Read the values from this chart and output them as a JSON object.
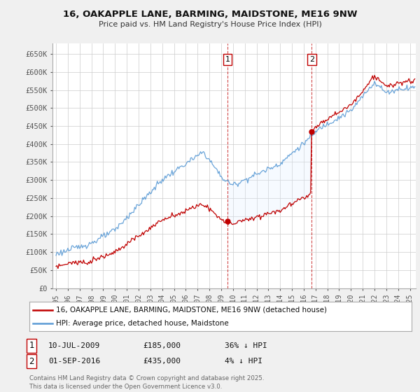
{
  "title": "16, OAKAPPLE LANE, BARMING, MAIDSTONE, ME16 9NW",
  "subtitle": "Price paid vs. HM Land Registry's House Price Index (HPI)",
  "ylim": [
    0,
    680000
  ],
  "yticks": [
    0,
    50000,
    100000,
    150000,
    200000,
    250000,
    300000,
    350000,
    400000,
    450000,
    500000,
    550000,
    600000,
    650000
  ],
  "ytick_labels": [
    "£0",
    "£50K",
    "£100K",
    "£150K",
    "£200K",
    "£250K",
    "£300K",
    "£350K",
    "£400K",
    "£450K",
    "£500K",
    "£550K",
    "£600K",
    "£650K"
  ],
  "hpi_color": "#5b9bd5",
  "price_color": "#c00000",
  "fill_color": "#ddeeff",
  "purchase1_date": 2009.53,
  "purchase1_price": 185000,
  "purchase2_date": 2016.67,
  "purchase2_price": 435000,
  "legend_line1": "16, OAKAPPLE LANE, BARMING, MAIDSTONE, ME16 9NW (detached house)",
  "legend_line2": "HPI: Average price, detached house, Maidstone",
  "purchase1_text": "10-JUL-2009",
  "purchase1_amount": "£185,000",
  "purchase1_hpi": "36% ↓ HPI",
  "purchase2_text": "01-SEP-2016",
  "purchase2_amount": "£435,000",
  "purchase2_hpi": "4% ↓ HPI",
  "footer": "Contains HM Land Registry data © Crown copyright and database right 2025.\nThis data is licensed under the Open Government Licence v3.0.",
  "bg_color": "#f0f0f0",
  "plot_bg": "#ffffff",
  "xlim_left": 1994.7,
  "xlim_right": 2025.5
}
